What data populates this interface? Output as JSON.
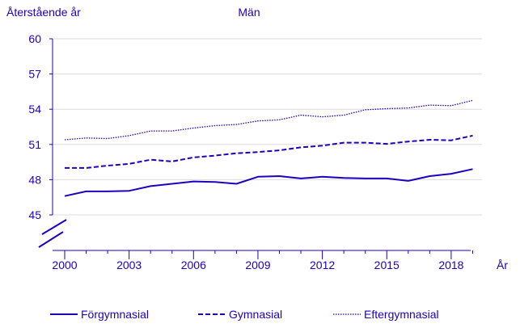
{
  "chart_data": {
    "type": "line",
    "title": "Män",
    "ylabel": "Återstående år",
    "xlabel": "År",
    "ylim": [
      45,
      60
    ],
    "xlim": [
      2000,
      2019
    ],
    "yticks": [
      "45",
      "48",
      "51",
      "54",
      "57",
      "60"
    ],
    "xticks": [
      "2000",
      "2003",
      "2006",
      "2009",
      "2012",
      "2015",
      "2018"
    ],
    "x": [
      2000,
      2001,
      2002,
      2003,
      2004,
      2005,
      2006,
      2007,
      2008,
      2009,
      2010,
      2011,
      2012,
      2013,
      2014,
      2015,
      2016,
      2017,
      2018,
      2019
    ],
    "grid": true,
    "axis_break": true,
    "legend_position": "bottom",
    "color": "#1e00be",
    "series": [
      {
        "name": "Förgymnasial",
        "style": "solid",
        "values": [
          46.6,
          47.0,
          47.0,
          47.05,
          47.45,
          47.65,
          47.85,
          47.8,
          47.65,
          48.25,
          48.3,
          48.1,
          48.25,
          48.15,
          48.1,
          48.1,
          47.9,
          48.3,
          48.5,
          48.9
        ]
      },
      {
        "name": "Gymnasial",
        "style": "dashed",
        "values": [
          49.0,
          49.0,
          49.2,
          49.35,
          49.7,
          49.55,
          49.9,
          50.05,
          50.25,
          50.35,
          50.5,
          50.75,
          50.9,
          51.15,
          51.15,
          51.05,
          51.25,
          51.4,
          51.35,
          51.75
        ]
      },
      {
        "name": "Eftergymnasial",
        "style": "dotted",
        "values": [
          51.4,
          51.55,
          51.5,
          51.75,
          52.15,
          52.15,
          52.4,
          52.6,
          52.7,
          53.0,
          53.1,
          53.5,
          53.35,
          53.5,
          53.95,
          54.05,
          54.1,
          54.35,
          54.3,
          54.75
        ]
      }
    ]
  }
}
